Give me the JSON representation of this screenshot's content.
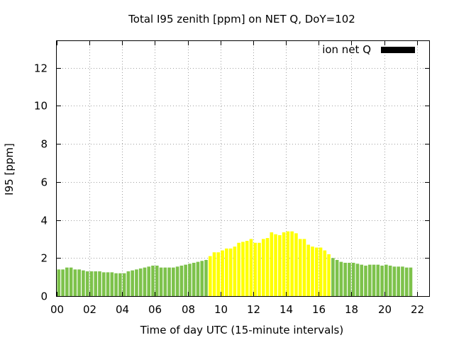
{
  "chart_data": {
    "type": "bar",
    "title": "Total I95 zenith [ppm] on NET Q, DoY=102",
    "xlabel": "Time of day UTC (15-minute intervals)",
    "ylabel": "I95 [ppm]",
    "legend": {
      "label": "ion net Q",
      "color": "#000000",
      "placement": "top-right"
    },
    "xlim": [
      0,
      22.75
    ],
    "ylim": [
      0,
      13.4
    ],
    "grid": true,
    "x_ticks": [
      "00",
      "02",
      "04",
      "06",
      "08",
      "10",
      "12",
      "14",
      "16",
      "18",
      "20",
      "22"
    ],
    "y_ticks": [
      "0",
      "2",
      "4",
      "6",
      "8",
      "10",
      "12"
    ],
    "x_tick_values": [
      0,
      2,
      4,
      6,
      8,
      10,
      12,
      14,
      16,
      18,
      20,
      22
    ],
    "y_tick_values": [
      0,
      2,
      4,
      6,
      8,
      10,
      12
    ],
    "bar_width_hours": 0.2,
    "colors": {
      "normal": "#7dc24b",
      "elevated": "#ffff00"
    },
    "bars": [
      {
        "x": 0.0,
        "value": 1.4,
        "level": "normal"
      },
      {
        "x": 0.25,
        "value": 1.4,
        "level": "normal"
      },
      {
        "x": 0.5,
        "value": 1.5,
        "level": "normal"
      },
      {
        "x": 0.75,
        "value": 1.5,
        "level": "normal"
      },
      {
        "x": 1.0,
        "value": 1.4,
        "level": "normal"
      },
      {
        "x": 1.25,
        "value": 1.4,
        "level": "normal"
      },
      {
        "x": 1.5,
        "value": 1.35,
        "level": "normal"
      },
      {
        "x": 1.75,
        "value": 1.3,
        "level": "normal"
      },
      {
        "x": 2.0,
        "value": 1.3,
        "level": "normal"
      },
      {
        "x": 2.25,
        "value": 1.3,
        "level": "normal"
      },
      {
        "x": 2.5,
        "value": 1.3,
        "level": "normal"
      },
      {
        "x": 2.75,
        "value": 1.25,
        "level": "normal"
      },
      {
        "x": 3.0,
        "value": 1.25,
        "level": "normal"
      },
      {
        "x": 3.25,
        "value": 1.25,
        "level": "normal"
      },
      {
        "x": 3.5,
        "value": 1.2,
        "level": "normal"
      },
      {
        "x": 3.75,
        "value": 1.2,
        "level": "normal"
      },
      {
        "x": 4.0,
        "value": 1.2,
        "level": "normal"
      },
      {
        "x": 4.25,
        "value": 1.3,
        "level": "normal"
      },
      {
        "x": 4.5,
        "value": 1.35,
        "level": "normal"
      },
      {
        "x": 4.75,
        "value": 1.4,
        "level": "normal"
      },
      {
        "x": 5.0,
        "value": 1.45,
        "level": "normal"
      },
      {
        "x": 5.25,
        "value": 1.5,
        "level": "normal"
      },
      {
        "x": 5.5,
        "value": 1.55,
        "level": "normal"
      },
      {
        "x": 5.75,
        "value": 1.6,
        "level": "normal"
      },
      {
        "x": 6.0,
        "value": 1.6,
        "level": "normal"
      },
      {
        "x": 6.25,
        "value": 1.5,
        "level": "normal"
      },
      {
        "x": 6.5,
        "value": 1.5,
        "level": "normal"
      },
      {
        "x": 6.75,
        "value": 1.5,
        "level": "normal"
      },
      {
        "x": 7.0,
        "value": 1.5,
        "level": "normal"
      },
      {
        "x": 7.25,
        "value": 1.55,
        "level": "normal"
      },
      {
        "x": 7.5,
        "value": 1.6,
        "level": "normal"
      },
      {
        "x": 7.75,
        "value": 1.65,
        "level": "normal"
      },
      {
        "x": 8.0,
        "value": 1.7,
        "level": "normal"
      },
      {
        "x": 8.25,
        "value": 1.75,
        "level": "normal"
      },
      {
        "x": 8.5,
        "value": 1.8,
        "level": "normal"
      },
      {
        "x": 8.75,
        "value": 1.85,
        "level": "normal"
      },
      {
        "x": 9.0,
        "value": 1.9,
        "level": "normal"
      },
      {
        "x": 9.25,
        "value": 2.1,
        "level": "elevated"
      },
      {
        "x": 9.5,
        "value": 2.3,
        "level": "elevated"
      },
      {
        "x": 9.75,
        "value": 2.3,
        "level": "elevated"
      },
      {
        "x": 10.0,
        "value": 2.4,
        "level": "elevated"
      },
      {
        "x": 10.25,
        "value": 2.5,
        "level": "elevated"
      },
      {
        "x": 10.5,
        "value": 2.5,
        "level": "elevated"
      },
      {
        "x": 10.75,
        "value": 2.6,
        "level": "elevated"
      },
      {
        "x": 11.0,
        "value": 2.8,
        "level": "elevated"
      },
      {
        "x": 11.25,
        "value": 2.85,
        "level": "elevated"
      },
      {
        "x": 11.5,
        "value": 2.9,
        "level": "elevated"
      },
      {
        "x": 11.75,
        "value": 3.0,
        "level": "elevated"
      },
      {
        "x": 12.0,
        "value": 2.8,
        "level": "elevated"
      },
      {
        "x": 12.25,
        "value": 2.8,
        "level": "elevated"
      },
      {
        "x": 12.5,
        "value": 3.0,
        "level": "elevated"
      },
      {
        "x": 12.75,
        "value": 3.05,
        "level": "elevated"
      },
      {
        "x": 13.0,
        "value": 3.35,
        "level": "elevated"
      },
      {
        "x": 13.25,
        "value": 3.25,
        "level": "elevated"
      },
      {
        "x": 13.5,
        "value": 3.2,
        "level": "elevated"
      },
      {
        "x": 13.75,
        "value": 3.35,
        "level": "elevated"
      },
      {
        "x": 14.0,
        "value": 3.4,
        "level": "elevated"
      },
      {
        "x": 14.25,
        "value": 3.4,
        "level": "elevated"
      },
      {
        "x": 14.5,
        "value": 3.3,
        "level": "elevated"
      },
      {
        "x": 14.75,
        "value": 3.0,
        "level": "elevated"
      },
      {
        "x": 15.0,
        "value": 3.0,
        "level": "elevated"
      },
      {
        "x": 15.25,
        "value": 2.7,
        "level": "elevated"
      },
      {
        "x": 15.5,
        "value": 2.6,
        "level": "elevated"
      },
      {
        "x": 15.75,
        "value": 2.55,
        "level": "elevated"
      },
      {
        "x": 16.0,
        "value": 2.55,
        "level": "elevated"
      },
      {
        "x": 16.25,
        "value": 2.4,
        "level": "elevated"
      },
      {
        "x": 16.5,
        "value": 2.2,
        "level": "elevated"
      },
      {
        "x": 16.75,
        "value": 2.0,
        "level": "normal"
      },
      {
        "x": 17.0,
        "value": 1.9,
        "level": "normal"
      },
      {
        "x": 17.25,
        "value": 1.8,
        "level": "normal"
      },
      {
        "x": 17.5,
        "value": 1.75,
        "level": "normal"
      },
      {
        "x": 17.75,
        "value": 1.75,
        "level": "normal"
      },
      {
        "x": 18.0,
        "value": 1.75,
        "level": "normal"
      },
      {
        "x": 18.25,
        "value": 1.7,
        "level": "normal"
      },
      {
        "x": 18.5,
        "value": 1.65,
        "level": "normal"
      },
      {
        "x": 18.75,
        "value": 1.6,
        "level": "normal"
      },
      {
        "x": 19.0,
        "value": 1.65,
        "level": "normal"
      },
      {
        "x": 19.25,
        "value": 1.65,
        "level": "normal"
      },
      {
        "x": 19.5,
        "value": 1.65,
        "level": "normal"
      },
      {
        "x": 19.75,
        "value": 1.6,
        "level": "normal"
      },
      {
        "x": 20.0,
        "value": 1.65,
        "level": "normal"
      },
      {
        "x": 20.25,
        "value": 1.6,
        "level": "normal"
      },
      {
        "x": 20.5,
        "value": 1.55,
        "level": "normal"
      },
      {
        "x": 20.75,
        "value": 1.55,
        "level": "normal"
      },
      {
        "x": 21.0,
        "value": 1.55,
        "level": "normal"
      },
      {
        "x": 21.25,
        "value": 1.5,
        "level": "normal"
      },
      {
        "x": 21.5,
        "value": 1.5,
        "level": "normal"
      }
    ]
  }
}
